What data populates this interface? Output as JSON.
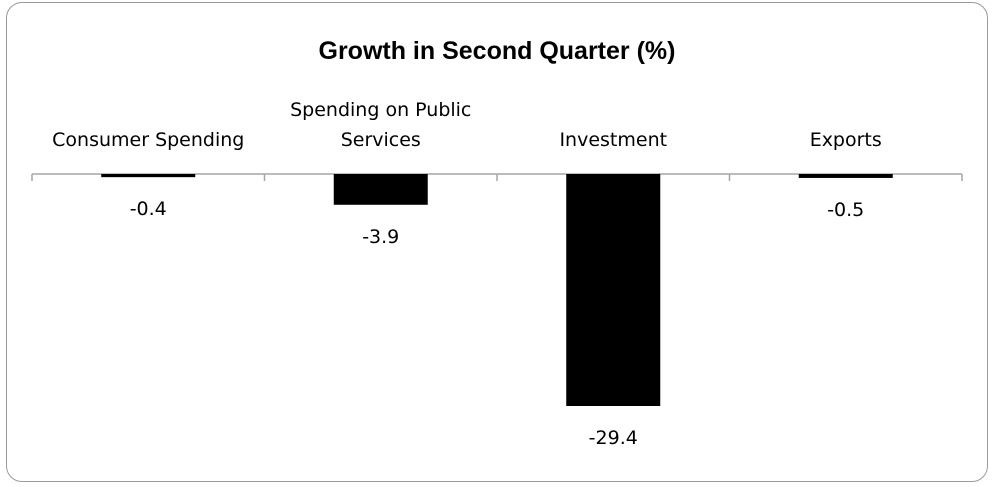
{
  "chart_data": {
    "type": "bar",
    "title": "Growth in Second Quarter (%)",
    "categories": [
      "Consumer Spending",
      "Spending on Public Services",
      "Investment",
      "Exports"
    ],
    "category_label_lines": [
      [
        "Consumer Spending"
      ],
      [
        "Spending on Public",
        "Services"
      ],
      [
        "Investment"
      ],
      [
        "Exports"
      ]
    ],
    "values": [
      -0.4,
      -3.9,
      -29.4,
      -0.5
    ],
    "value_labels": [
      "-0.4",
      "-3.9",
      "-29.4",
      "-0.5"
    ],
    "xlabel": "",
    "ylabel": "",
    "ylim": [
      -30,
      0
    ],
    "grid": false,
    "legend": "none",
    "bar_color": "#000000",
    "axis_color": "#a6a6a6"
  }
}
